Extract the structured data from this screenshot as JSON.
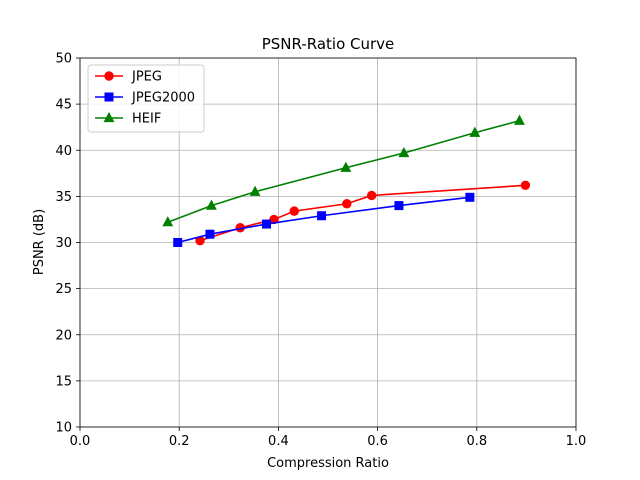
{
  "chart_data": {
    "type": "line",
    "title": "PSNR-Ratio Curve",
    "xlabel": "Compression Ratio",
    "ylabel": "PSNR (dB)",
    "xlim": [
      0.0,
      1.0
    ],
    "ylim": [
      10,
      50
    ],
    "xticks": [
      "0.0",
      "0.2",
      "0.4",
      "0.6",
      "0.8",
      "1.0"
    ],
    "yticks": [
      "10",
      "15",
      "20",
      "25",
      "30",
      "35",
      "40",
      "45",
      "50"
    ],
    "grid": true,
    "legend_position": "upper-left",
    "series": [
      {
        "name": "JPEG",
        "color": "#ff0000",
        "marker": "circle",
        "x": [
          0.242,
          0.323,
          0.391,
          0.432,
          0.538,
          0.588,
          0.898
        ],
        "y": [
          30.2,
          31.6,
          32.5,
          33.4,
          34.2,
          35.1,
          36.2
        ]
      },
      {
        "name": "JPEG2000",
        "color": "#0000ff",
        "marker": "square",
        "x": [
          0.197,
          0.262,
          0.376,
          0.487,
          0.643,
          0.786
        ],
        "y": [
          30.0,
          30.9,
          32.0,
          32.9,
          34.0,
          34.9
        ]
      },
      {
        "name": "HEIF",
        "color": "#008000",
        "marker": "triangle",
        "x": [
          0.177,
          0.265,
          0.353,
          0.536,
          0.653,
          0.796,
          0.886
        ],
        "y": [
          32.2,
          34.0,
          35.5,
          38.1,
          39.7,
          41.9,
          43.2
        ]
      }
    ]
  }
}
